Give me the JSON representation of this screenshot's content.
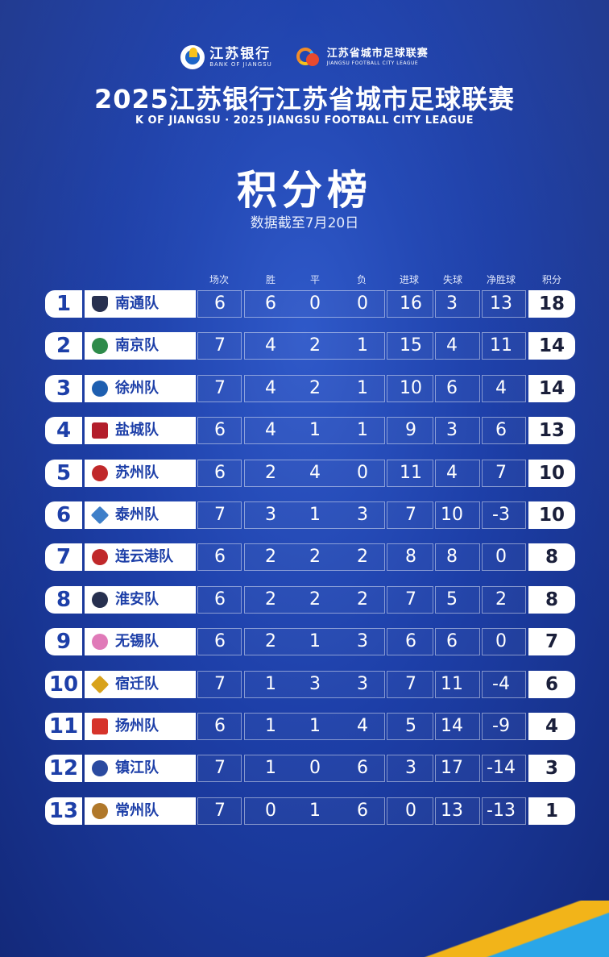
{
  "header": {
    "bank_logo": {
      "cn": "江苏银行",
      "en": "BANK OF JIANGSU",
      "icon": "bank-of-jiangsu-logo"
    },
    "league_logo": {
      "cn": "江苏省城市足球联赛",
      "en": "JIANGSU FOOTBALL CITY LEAGUE",
      "icon": "league-logo"
    },
    "title": "2025江苏银行江苏省城市足球联赛",
    "subtitle": "K OF JIANGSU · 2025 JIANGSU FOOTBALL CITY LEAGUE",
    "board_title": "积分榜",
    "date_note": "数据截至7月20日"
  },
  "columns": [
    "场次",
    "胜",
    "平",
    "负",
    "进球",
    "失球",
    "净胜球",
    "积分"
  ],
  "colors": {
    "background": "#1d3fa8",
    "accent": "#1d3fa8",
    "row_white": "#ffffff"
  },
  "standings": [
    {
      "rank": "1",
      "team": "南通队",
      "played": "6",
      "won": "6",
      "drawn": "0",
      "lost": "0",
      "gf": "16",
      "ga": "3",
      "gd": "13",
      "pts": "18",
      "badge": "nantong-badge"
    },
    {
      "rank": "2",
      "team": "南京队",
      "played": "7",
      "won": "4",
      "drawn": "2",
      "lost": "1",
      "gf": "15",
      "ga": "4",
      "gd": "11",
      "pts": "14",
      "badge": "nanjing-badge"
    },
    {
      "rank": "3",
      "team": "徐州队",
      "played": "7",
      "won": "4",
      "drawn": "2",
      "lost": "1",
      "gf": "10",
      "ga": "6",
      "gd": "4",
      "pts": "14",
      "badge": "xuzhou-badge"
    },
    {
      "rank": "4",
      "team": "盐城队",
      "played": "6",
      "won": "4",
      "drawn": "1",
      "lost": "1",
      "gf": "9",
      "ga": "3",
      "gd": "6",
      "pts": "13",
      "badge": "yancheng-badge"
    },
    {
      "rank": "5",
      "team": "苏州队",
      "played": "6",
      "won": "2",
      "drawn": "4",
      "lost": "0",
      "gf": "11",
      "ga": "4",
      "gd": "7",
      "pts": "10",
      "badge": "suzhou-badge"
    },
    {
      "rank": "6",
      "team": "泰州队",
      "played": "7",
      "won": "3",
      "drawn": "1",
      "lost": "3",
      "gf": "7",
      "ga": "10",
      "gd": "-3",
      "pts": "10",
      "badge": "taizhou-badge"
    },
    {
      "rank": "7",
      "team": "连云港队",
      "played": "6",
      "won": "2",
      "drawn": "2",
      "lost": "2",
      "gf": "8",
      "ga": "8",
      "gd": "0",
      "pts": "8",
      "badge": "lianyungang-badge"
    },
    {
      "rank": "8",
      "team": "淮安队",
      "played": "6",
      "won": "2",
      "drawn": "2",
      "lost": "2",
      "gf": "7",
      "ga": "5",
      "gd": "2",
      "pts": "8",
      "badge": "huaian-badge"
    },
    {
      "rank": "9",
      "team": "无锡队",
      "played": "6",
      "won": "2",
      "drawn": "1",
      "lost": "3",
      "gf": "6",
      "ga": "6",
      "gd": "0",
      "pts": "7",
      "badge": "wuxi-badge"
    },
    {
      "rank": "10",
      "team": "宿迁队",
      "played": "7",
      "won": "1",
      "drawn": "3",
      "lost": "3",
      "gf": "7",
      "ga": "11",
      "gd": "-4",
      "pts": "6",
      "badge": "suqian-badge"
    },
    {
      "rank": "11",
      "team": "扬州队",
      "played": "6",
      "won": "1",
      "drawn": "1",
      "lost": "4",
      "gf": "5",
      "ga": "14",
      "gd": "-9",
      "pts": "4",
      "badge": "yangzhou-badge"
    },
    {
      "rank": "12",
      "team": "镇江队",
      "played": "7",
      "won": "1",
      "drawn": "0",
      "lost": "6",
      "gf": "3",
      "ga": "17",
      "gd": "-14",
      "pts": "3",
      "badge": "zhenjiang-badge"
    },
    {
      "rank": "13",
      "team": "常州队",
      "played": "7",
      "won": "0",
      "drawn": "1",
      "lost": "6",
      "gf": "0",
      "ga": "13",
      "gd": "-13",
      "pts": "1",
      "badge": "changzhou-badge"
    }
  ]
}
